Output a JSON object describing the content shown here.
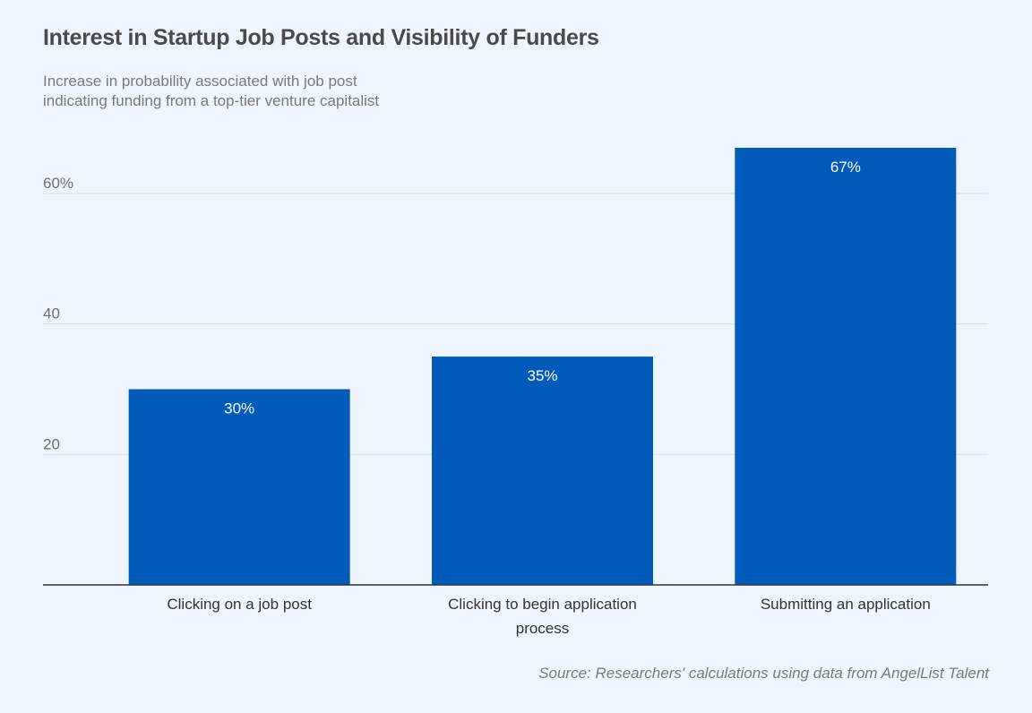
{
  "chart_data": {
    "type": "bar",
    "title": "Interest in Startup Job Posts and Visibility of Funders",
    "subtitle_lines": [
      "Increase in probability associated with job post",
      "indicating funding from a top-tier venture capitalist"
    ],
    "categories": [
      [
        "Clicking on a job post"
      ],
      [
        "Clicking to begin application",
        "process"
      ],
      [
        "Submitting an application"
      ]
    ],
    "values": [
      30,
      35,
      67
    ],
    "data_labels": [
      "30%",
      "35%",
      "67%"
    ],
    "xlabel": "",
    "ylabel": "",
    "ylim": [
      0,
      70
    ],
    "yticks": [
      20,
      40,
      60
    ],
    "ytick_labels": [
      "20",
      "40",
      "60%"
    ],
    "grid": true,
    "legend": "none",
    "bar_color": "#005bbb",
    "source": "Source: Researchers' calculations using data from AngelList Talent"
  }
}
